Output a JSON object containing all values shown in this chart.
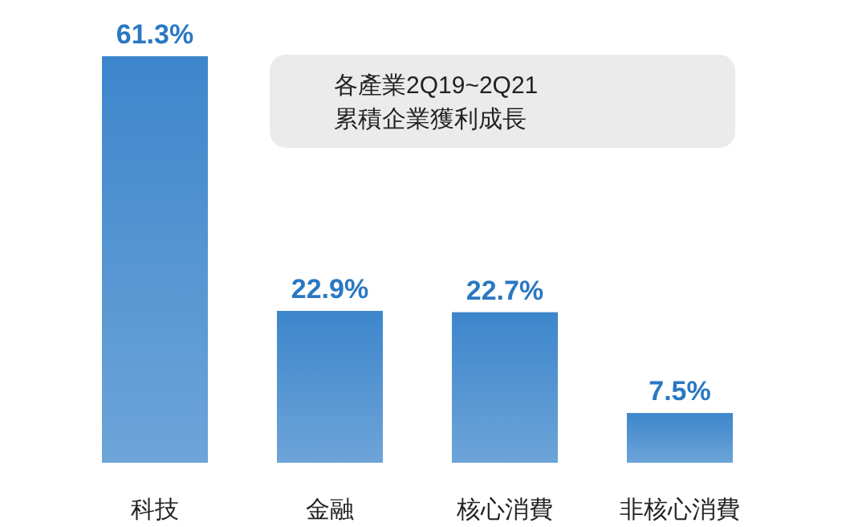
{
  "chart_data": {
    "type": "bar",
    "title": "各產業2Q19~2Q21\n累積企業獲利成長",
    "categories": [
      "科技",
      "金融",
      "核心消費",
      "非核心消費"
    ],
    "values": [
      61.3,
      22.9,
      22.7,
      7.5
    ],
    "color": "#3d86cc",
    "value_labels": [
      "61.3%",
      "22.9%",
      "22.7%",
      "7.5%"
    ]
  }
}
